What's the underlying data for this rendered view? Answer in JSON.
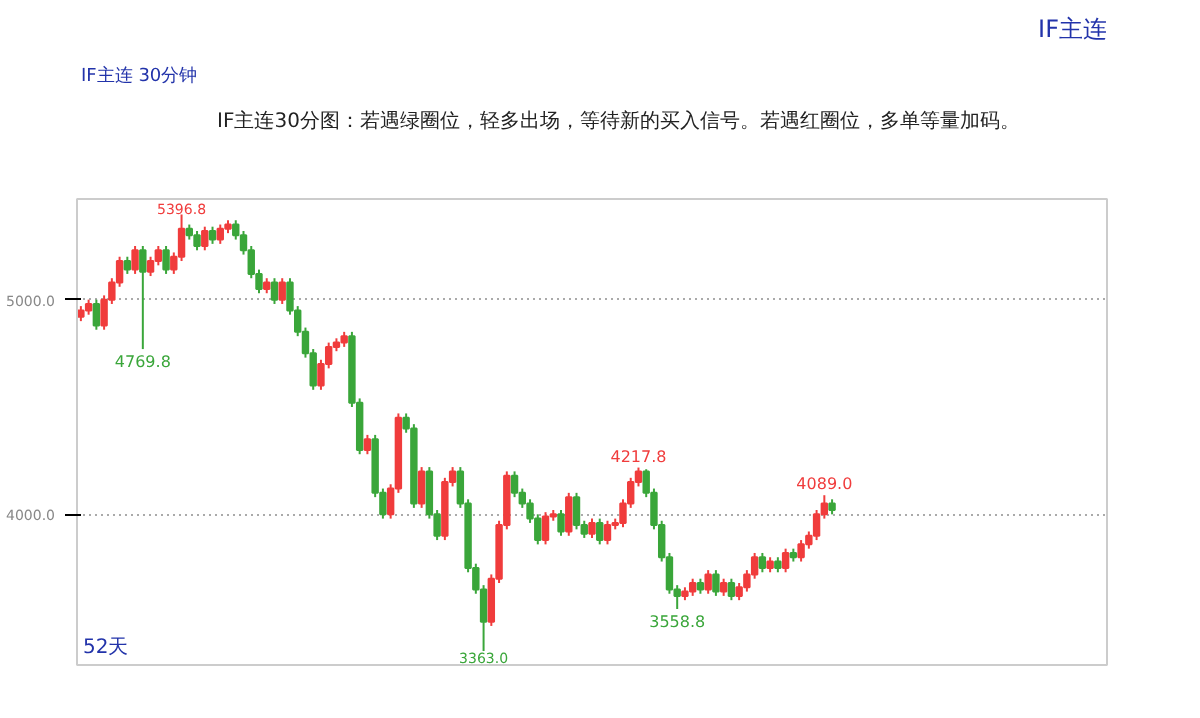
{
  "chart_data": {
    "type": "candlestick",
    "title": "IF主连30分图：若遇绿圈位，轻多出场，等待新的买入信号。若遇红圈位，多单等量加码。",
    "categories": [
      null,
      null,
      null,
      null,
      null,
      null,
      null,
      null,
      null,
      null,
      null,
      null,
      null,
      null,
      null,
      null,
      null,
      null,
      null,
      null,
      null,
      null,
      null,
      null,
      null,
      null,
      null,
      null,
      null,
      null,
      null,
      null,
      null,
      null,
      null,
      null,
      null,
      null,
      null,
      null,
      null,
      null,
      null,
      null,
      null,
      null,
      null,
      null,
      null,
      null,
      null,
      null,
      null,
      null,
      null,
      null,
      null,
      null,
      null,
      null,
      null,
      null,
      null,
      null,
      null,
      null,
      null,
      null,
      null,
      null,
      null,
      null,
      null,
      null,
      null,
      null,
      null,
      null,
      null,
      null,
      null,
      null,
      null,
      null,
      null,
      null,
      null,
      null,
      null,
      null,
      null,
      null,
      null,
      null,
      null,
      null,
      null,
      null,
      null,
      null,
      null,
      null,
      null,
      null,
      null,
      null,
      null,
      null,
      null,
      null,
      null,
      null,
      null,
      null,
      null,
      null,
      null,
      null,
      null,
      null,
      null,
      null,
      null,
      null,
      null,
      null,
      null,
      null,
      null,
      null,
      null,
      null,
      null
    ],
    "ohlc": [
      [
        4920,
        4970,
        4900,
        4950
      ],
      [
        4950,
        5000,
        4930,
        4980
      ],
      [
        4980,
        5000,
        4860,
        4880
      ],
      [
        4880,
        5020,
        4860,
        5000
      ],
      [
        5000,
        5100,
        4980,
        5080
      ],
      [
        5080,
        5200,
        5060,
        5180
      ],
      [
        5180,
        5200,
        5120,
        5140
      ],
      [
        5140,
        5250,
        5120,
        5230
      ],
      [
        5230,
        5250,
        4769.8,
        5130
      ],
      [
        5130,
        5200,
        5110,
        5180
      ],
      [
        5180,
        5250,
        5160,
        5230
      ],
      [
        5230,
        5250,
        5120,
        5140
      ],
      [
        5140,
        5220,
        5120,
        5200
      ],
      [
        5200,
        5396.8,
        5180,
        5330
      ],
      [
        5330,
        5350,
        5280,
        5300
      ],
      [
        5300,
        5320,
        5230,
        5250
      ],
      [
        5250,
        5340,
        5230,
        5320
      ],
      [
        5320,
        5340,
        5260,
        5280
      ],
      [
        5280,
        5350,
        5260,
        5330
      ],
      [
        5330,
        5370,
        5310,
        5350
      ],
      [
        5350,
        5370,
        5280,
        5300
      ],
      [
        5300,
        5320,
        5210,
        5230
      ],
      [
        5230,
        5250,
        5100,
        5120
      ],
      [
        5120,
        5140,
        5030,
        5050
      ],
      [
        5050,
        5100,
        5030,
        5080
      ],
      [
        5080,
        5100,
        4980,
        5000
      ],
      [
        5000,
        5100,
        4980,
        5080
      ],
      [
        5080,
        5100,
        4930,
        4950
      ],
      [
        4950,
        4970,
        4830,
        4850
      ],
      [
        4850,
        4870,
        4730,
        4750
      ],
      [
        4750,
        4770,
        4580,
        4600
      ],
      [
        4600,
        4720,
        4580,
        4700
      ],
      [
        4700,
        4800,
        4680,
        4780
      ],
      [
        4780,
        4820,
        4760,
        4800
      ],
      [
        4800,
        4850,
        4780,
        4830
      ],
      [
        4830,
        4850,
        4500,
        4520
      ],
      [
        4520,
        4540,
        4280,
        4300
      ],
      [
        4300,
        4370,
        4280,
        4350
      ],
      [
        4350,
        4370,
        4080,
        4100
      ],
      [
        4100,
        4120,
        3980,
        4000
      ],
      [
        4000,
        4140,
        3980,
        4120
      ],
      [
        4120,
        4470,
        4100,
        4450
      ],
      [
        4450,
        4470,
        4380,
        4400
      ],
      [
        4400,
        4420,
        4030,
        4050
      ],
      [
        4050,
        4220,
        4030,
        4200
      ],
      [
        4200,
        4220,
        3980,
        4000
      ],
      [
        4000,
        4020,
        3880,
        3900
      ],
      [
        3900,
        4170,
        3880,
        4150
      ],
      [
        4150,
        4220,
        4130,
        4200
      ],
      [
        4200,
        4220,
        4030,
        4050
      ],
      [
        4050,
        4070,
        3730,
        3750
      ],
      [
        3750,
        3770,
        3630,
        3650
      ],
      [
        3650,
        3670,
        3363.0,
        3500
      ],
      [
        3500,
        3720,
        3480,
        3700
      ],
      [
        3700,
        3970,
        3680,
        3950
      ],
      [
        3950,
        4200,
        3930,
        4180
      ],
      [
        4180,
        4200,
        4080,
        4100
      ],
      [
        4100,
        4120,
        4030,
        4050
      ],
      [
        4050,
        4070,
        3960,
        3980
      ],
      [
        3980,
        4000,
        3860,
        3880
      ],
      [
        3880,
        4010,
        3860,
        3990
      ],
      [
        3990,
        4020,
        3970,
        4000
      ],
      [
        4000,
        4020,
        3900,
        3920
      ],
      [
        3920,
        4100,
        3900,
        4080
      ],
      [
        4080,
        4100,
        3930,
        3950
      ],
      [
        3950,
        3970,
        3890,
        3910
      ],
      [
        3910,
        3980,
        3890,
        3960
      ],
      [
        3960,
        3980,
        3860,
        3880
      ],
      [
        3880,
        3970,
        3860,
        3950
      ],
      [
        3950,
        3980,
        3930,
        3960
      ],
      [
        3960,
        4070,
        3940,
        4050
      ],
      [
        4050,
        4170,
        4030,
        4150
      ],
      [
        4150,
        4217.8,
        4130,
        4200
      ],
      [
        4200,
        4210,
        4080,
        4100
      ],
      [
        4100,
        4120,
        3930,
        3950
      ],
      [
        3950,
        3970,
        3780,
        3800
      ],
      [
        3800,
        3820,
        3630,
        3650
      ],
      [
        3650,
        3670,
        3558.8,
        3620
      ],
      [
        3620,
        3660,
        3600,
        3640
      ],
      [
        3640,
        3700,
        3620,
        3680
      ],
      [
        3680,
        3700,
        3630,
        3650
      ],
      [
        3650,
        3740,
        3630,
        3720
      ],
      [
        3720,
        3740,
        3620,
        3640
      ],
      [
        3640,
        3700,
        3620,
        3680
      ],
      [
        3680,
        3700,
        3600,
        3620
      ],
      [
        3620,
        3680,
        3600,
        3660
      ],
      [
        3660,
        3740,
        3640,
        3720
      ],
      [
        3720,
        3820,
        3700,
        3800
      ],
      [
        3800,
        3820,
        3730,
        3750
      ],
      [
        3750,
        3800,
        3730,
        3780
      ],
      [
        3780,
        3800,
        3730,
        3750
      ],
      [
        3750,
        3840,
        3730,
        3820
      ],
      [
        3820,
        3840,
        3780,
        3800
      ],
      [
        3800,
        3880,
        3780,
        3860
      ],
      [
        3860,
        3920,
        3840,
        3900
      ],
      [
        3900,
        4020,
        3880,
        4000
      ],
      [
        4000,
        4089.0,
        3980,
        4050
      ],
      [
        4050,
        4070,
        4000,
        4020
      ],
      null,
      null,
      null,
      null,
      null,
      null,
      null,
      null,
      null,
      null,
      null,
      null,
      null,
      null,
      null,
      null,
      null,
      null,
      null,
      null,
      null,
      null,
      null,
      null,
      null,
      null,
      null,
      null,
      null,
      null,
      null,
      null,
      null,
      null,
      null
    ],
    "colors": [
      "#f03c3c",
      "#f03c3c",
      "#3aa63a",
      "#f03c3c",
      "#f03c3c",
      "#f03c3c",
      "#3aa63a",
      "#f03c3c",
      "#3aa63a",
      "#f03c3c",
      "#f03c3c",
      "#3aa63a",
      "#f03c3c",
      "#f03c3c",
      "#3aa63a",
      "#3aa63a",
      "#f03c3c",
      "#3aa63a",
      "#f03c3c",
      "#f03c3c",
      "#3aa63a",
      "#3aa63a",
      "#3aa63a",
      "#3aa63a",
      "#f03c3c",
      "#3aa63a",
      "#f03c3c",
      "#3aa63a",
      "#3aa63a",
      "#3aa63a",
      "#3aa63a",
      "#f03c3c",
      "#f03c3c",
      "#f03c3c",
      "#f03c3c",
      "#3aa63a",
      "#3aa63a",
      "#f03c3c",
      "#3aa63a",
      "#3aa63a",
      "#f03c3c",
      "#f03c3c",
      "#3aa63a",
      "#3aa63a",
      "#f03c3c",
      "#3aa63a",
      "#3aa63a",
      "#f03c3c",
      "#f03c3c",
      "#3aa63a",
      "#3aa63a",
      "#3aa63a",
      "#3aa63a",
      "#f03c3c",
      "#f03c3c",
      "#f03c3c",
      "#3aa63a",
      "#3aa63a",
      "#3aa63a",
      "#3aa63a",
      "#f03c3c",
      "#f03c3c",
      "#3aa63a",
      "#f03c3c",
      "#3aa63a",
      "#3aa63a",
      "#f03c3c",
      "#3aa63a",
      "#f03c3c",
      "#f03c3c",
      "#f03c3c",
      "#f03c3c",
      "#f03c3c",
      "#3aa63a",
      "#3aa63a",
      "#3aa63a",
      "#3aa63a",
      "#3aa63a",
      "#f03c3c",
      "#f03c3c",
      "#3aa63a",
      "#f03c3c",
      "#3aa63a",
      "#f03c3c",
      "#3aa63a",
      "#f03c3c",
      "#f03c3c",
      "#f03c3c",
      "#3aa63a",
      "#f03c3c",
      "#3aa63a",
      "#f03c3c",
      "#3aa63a",
      "#f03c3c",
      "#f03c3c",
      "#f03c3c",
      "#f03c3c",
      "#3aa63a",
      null,
      null,
      null,
      null,
      null,
      null,
      null,
      null,
      null,
      null,
      null,
      null,
      null,
      null,
      null,
      null,
      null,
      null,
      null,
      null,
      null,
      null,
      null,
      null,
      null,
      null,
      null,
      null,
      null,
      null,
      null,
      null,
      null,
      null,
      null
    ],
    "ylim": [
      3298,
      5469
    ],
    "yticks": [
      {
        "value": 4000,
        "label": "4000.0"
      },
      {
        "value": 5000,
        "label": "5000.0"
      }
    ],
    "tick_labels": "y",
    "grid": "y",
    "annotations": [
      "IF主连 30分钟",
      "IF主连",
      "52天",
      {
        "text": "5396.8",
        "y": 5396.8
      },
      {
        "text": "4769.8",
        "y": 4769.8
      },
      {
        "text": "3363.0",
        "y": 3363.0
      },
      {
        "text": "4217.8",
        "y": 4217.8
      },
      {
        "text": "3558.8",
        "y": 3558.8
      },
      {
        "text": "4089.0",
        "y": 4089.0
      }
    ]
  }
}
